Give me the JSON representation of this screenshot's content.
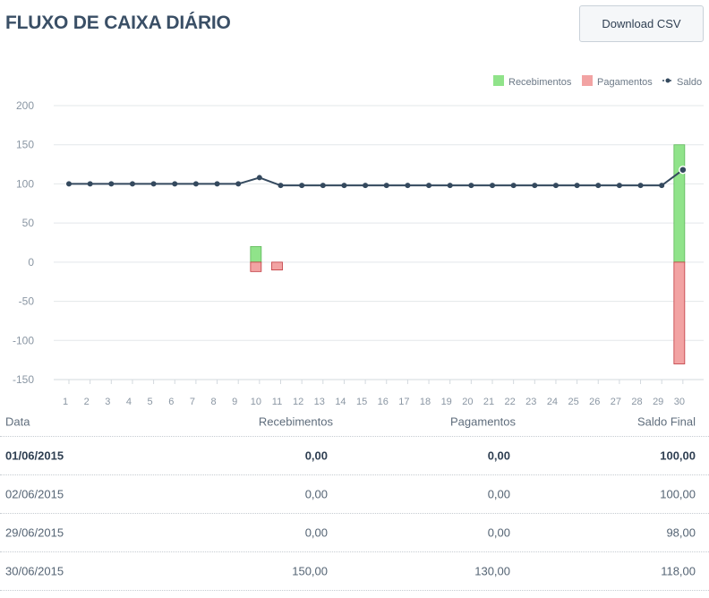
{
  "header": {
    "title": "FLUXO DE CAIXA DIÁRIO",
    "download_label": "Download CSV"
  },
  "colors": {
    "receipts_fill": "#90e38a",
    "payments_fill": "#f2a3a3",
    "payments_stroke": "#c0393f",
    "receipts_stroke": "#5fb85a",
    "balance_line": "#34495e",
    "grid": "#e3e7ea",
    "axis_text": "#8a96a3"
  },
  "chart_data": {
    "type": "bar+line",
    "legend_position": "top-right",
    "grid": true,
    "categories": [
      "1",
      "2",
      "3",
      "4",
      "5",
      "6",
      "7",
      "8",
      "9",
      "10",
      "11",
      "12",
      "13",
      "14",
      "15",
      "16",
      "17",
      "18",
      "19",
      "20",
      "21",
      "22",
      "23",
      "24",
      "25",
      "26",
      "27",
      "28",
      "29",
      "30"
    ],
    "ylim": [
      -150,
      200
    ],
    "yticks": [
      200,
      150,
      100,
      50,
      0,
      -50,
      -100,
      -150
    ],
    "series": [
      {
        "name": "Recebimentos",
        "type": "bar",
        "values": [
          0,
          0,
          0,
          0,
          0,
          0,
          0,
          0,
          0,
          20,
          0,
          0,
          0,
          0,
          0,
          0,
          0,
          0,
          0,
          0,
          0,
          0,
          0,
          0,
          0,
          0,
          0,
          0,
          0,
          150
        ]
      },
      {
        "name": "Pagamentos",
        "type": "bar",
        "values": [
          0,
          0,
          0,
          0,
          0,
          0,
          0,
          0,
          0,
          -12,
          -10,
          0,
          0,
          0,
          0,
          0,
          0,
          0,
          0,
          0,
          0,
          0,
          0,
          0,
          0,
          0,
          0,
          0,
          0,
          -130
        ]
      },
      {
        "name": "Saldo",
        "type": "line",
        "values": [
          100,
          100,
          100,
          100,
          100,
          100,
          100,
          100,
          100,
          108,
          98,
          98,
          98,
          98,
          98,
          98,
          98,
          98,
          98,
          98,
          98,
          98,
          98,
          98,
          98,
          98,
          98,
          98,
          98,
          118
        ]
      }
    ]
  },
  "table": {
    "columns": [
      "Data",
      "Recebimentos",
      "Pagamentos",
      "Saldo Final"
    ],
    "rows": [
      {
        "date": "01/06/2015",
        "receipts": "0,00",
        "payments": "0,00",
        "balance": "100,00"
      },
      {
        "date": "02/06/2015",
        "receipts": "0,00",
        "payments": "0,00",
        "balance": "100,00"
      },
      {
        "date": "29/06/2015",
        "receipts": "0,00",
        "payments": "0,00",
        "balance": "98,00"
      },
      {
        "date": "30/06/2015",
        "receipts": "150,00",
        "payments": "130,00",
        "balance": "118,00"
      }
    ]
  }
}
